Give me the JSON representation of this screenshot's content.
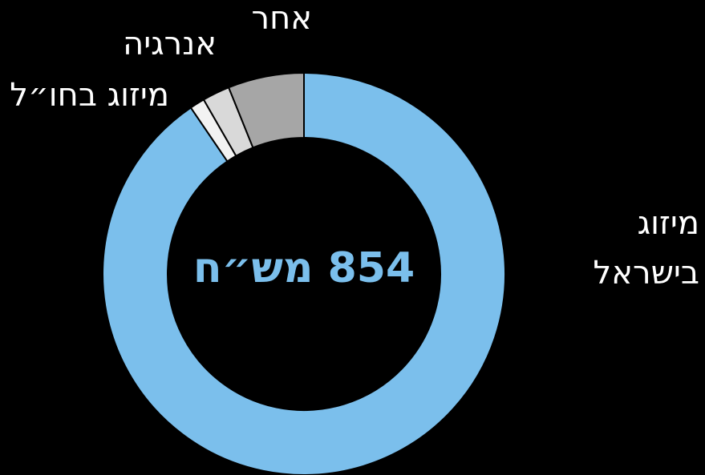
{
  "chart_data": {
    "type": "donut",
    "center_label": "854 מש״ח",
    "categories": [
      "מיזוג בישראל",
      "מיזוג בחו״ל",
      "אנרגיה",
      "אחר"
    ],
    "values": [
      90.5,
      1.2,
      2.2,
      6.1
    ],
    "colors": [
      "#7bbfec",
      "#f2f2f2",
      "#d9d9d9",
      "#a6a6a6"
    ]
  }
}
